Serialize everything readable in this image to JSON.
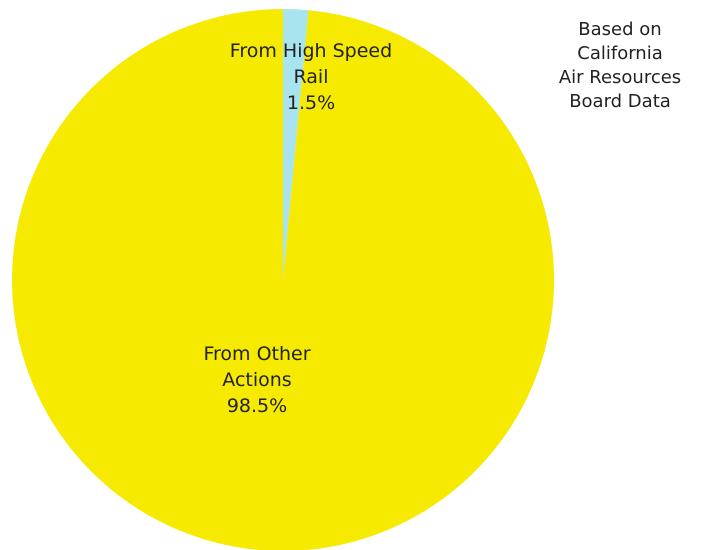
{
  "chart_data": {
    "type": "pie",
    "slices": [
      {
        "name": "From High Speed Rail",
        "label_lines": [
          "From High Speed",
          "Rail"
        ],
        "value": 1.5,
        "value_label": "1.5%",
        "color": "#a8e4f0"
      },
      {
        "name": "From Other Actions",
        "label_lines": [
          "From Other",
          "Actions"
        ],
        "value": 98.5,
        "value_label": "98.5%",
        "color": "#f5ea00"
      }
    ]
  },
  "source_note": {
    "lines": [
      "Based on",
      "California",
      "Air Resources",
      "Board Data"
    ]
  }
}
